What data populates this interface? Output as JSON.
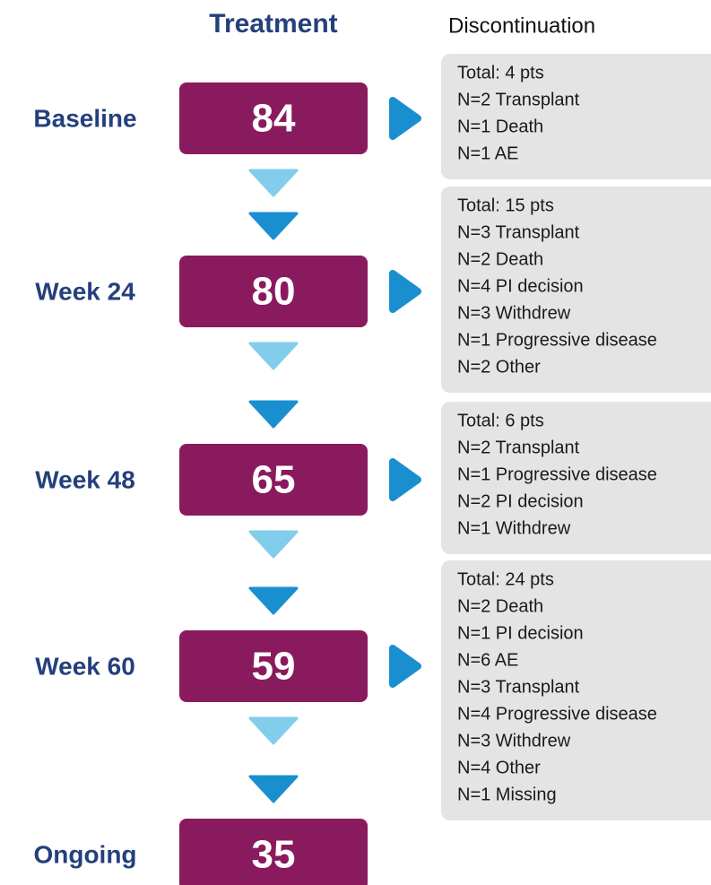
{
  "header": {
    "treatment": "Treatment",
    "discontinuation": "Discontinuation"
  },
  "stages": [
    {
      "label": "Baseline",
      "count": 84,
      "discontinuation": [
        "Total: 4 pts",
        "N=2 Transplant",
        "N=1 Death",
        "N=1 AE"
      ]
    },
    {
      "label": "Week 24",
      "count": 80,
      "discontinuation": [
        "Total: 15 pts",
        "N=3 Transplant",
        "N=2 Death",
        "N=4 PI decision",
        "N=3 Withdrew",
        "N=1 Progressive disease",
        "N=2 Other"
      ]
    },
    {
      "label": "Week 48",
      "count": 65,
      "discontinuation": [
        "Total: 6 pts",
        "N=2 Transplant",
        "N=1 Progressive disease",
        "N=2 PI decision",
        "N=1 Withdrew"
      ]
    },
    {
      "label": "Week 60",
      "count": 59,
      "discontinuation": [
        "Total: 24 pts",
        "N=2 Death",
        "N=1 PI decision",
        "N=6 AE",
        "N=3 Transplant",
        "N=4 Progressive disease",
        "N=3 Withdrew",
        "N=4 Other",
        "N=1 Missing"
      ]
    },
    {
      "label": "Ongoing",
      "count": 35
    }
  ]
}
